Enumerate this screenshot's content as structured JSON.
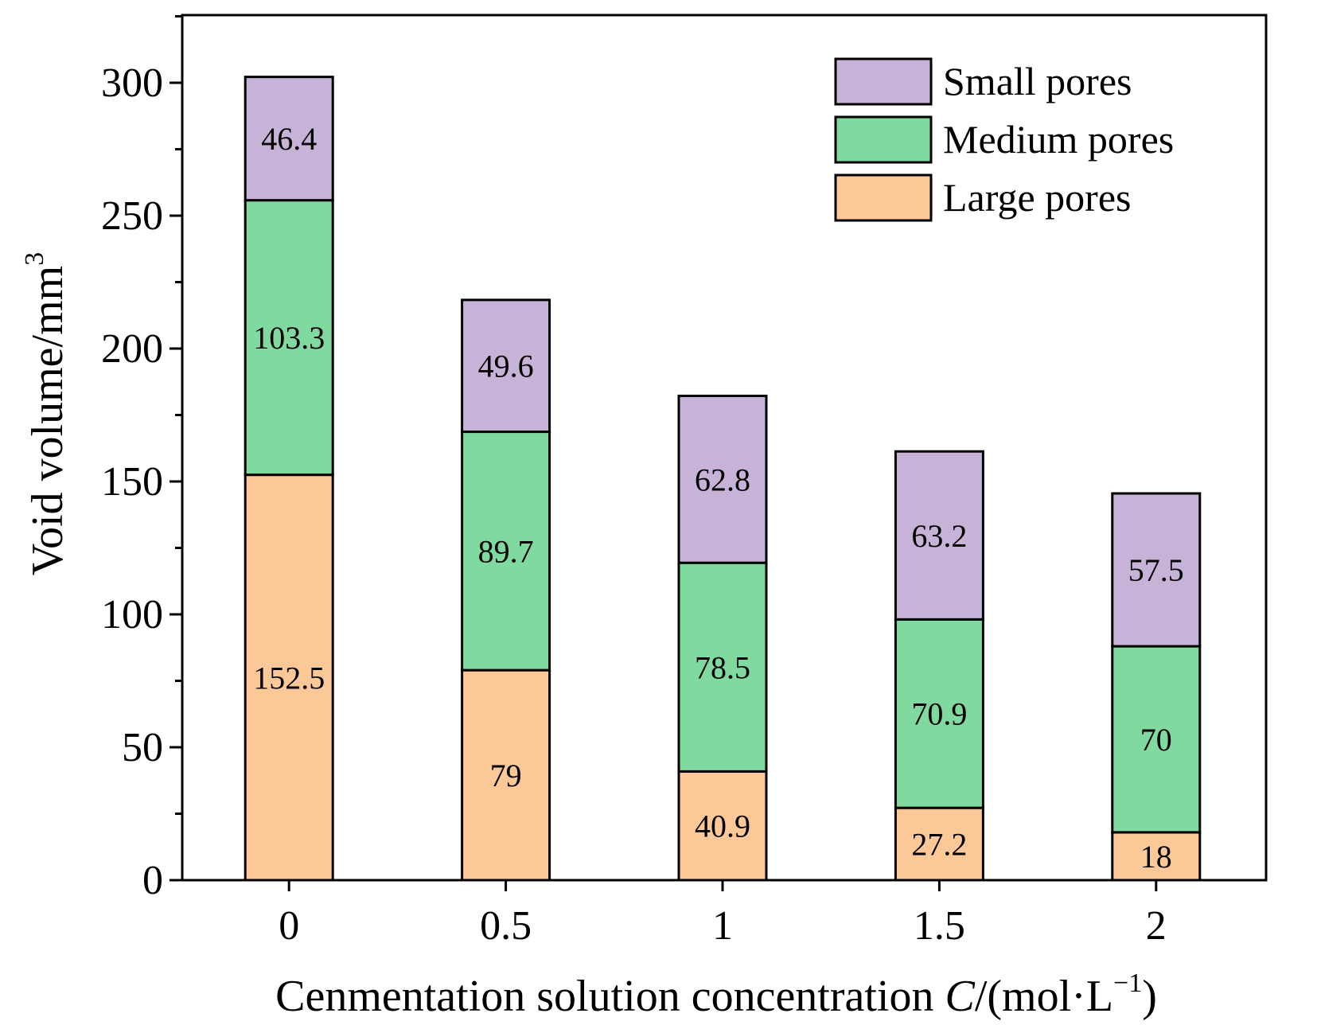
{
  "chart_data": {
    "type": "stacked-bar",
    "xlabel": "Cenmentation solution concentration ",
    "xlabel_var": "C",
    "xlabel_unit": "/(mol·L",
    "xlabel_exp": "−1",
    "xlabel_close": ")",
    "ylabel": "Void volume/mm",
    "ylabel_exp": "3",
    "ylim": [
      0,
      325
    ],
    "yticks": [
      0,
      50,
      100,
      150,
      200,
      250,
      300
    ],
    "categories": [
      "0",
      "0.5",
      "1",
      "1.5",
      "2"
    ],
    "series": [
      {
        "name": "Large pores",
        "color": "#FDC897",
        "values": [
          152.5,
          79,
          40.9,
          27.2,
          18
        ],
        "labels": [
          "152.5",
          "79",
          "40.9",
          "27.2",
          "18"
        ]
      },
      {
        "name": "Medium pores",
        "color": "#80D99E",
        "values": [
          103.3,
          89.7,
          78.5,
          70.9,
          70
        ],
        "labels": [
          "103.3",
          "89.7",
          "78.5",
          "70.9",
          "70"
        ]
      },
      {
        "name": "Small pores",
        "color": "#C7B3D8",
        "values": [
          46.4,
          49.6,
          62.8,
          63.2,
          57.5
        ],
        "labels": [
          "46.4",
          "49.6",
          "62.8",
          "63.2",
          "57.5"
        ]
      }
    ],
    "legend_order": [
      "Small pores",
      "Medium pores",
      "Large pores"
    ],
    "legend_position": "top-right",
    "grid": false
  }
}
